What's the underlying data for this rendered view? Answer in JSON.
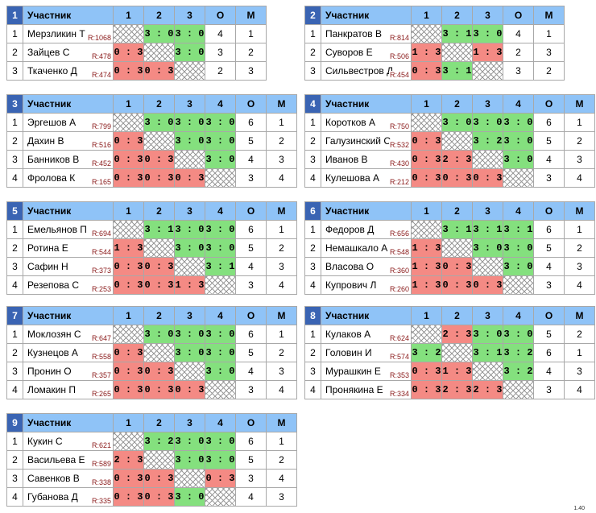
{
  "header": {
    "participant": "Участник",
    "points": "О",
    "place": "М"
  },
  "rating_prefix": "R:",
  "version": "1.40",
  "groups": [
    {
      "num": "1",
      "cols": [
        "1",
        "2",
        "3"
      ],
      "players": [
        {
          "idx": "1",
          "name": "Мерзликин Т",
          "rating": "1068",
          "cells": [
            "",
            "3 : 0",
            "3 : 0"
          ],
          "points": "4",
          "place": "1"
        },
        {
          "idx": "2",
          "name": "Зайцев С",
          "rating": "478",
          "cells": [
            "0 : 3",
            "",
            "3 : 0"
          ],
          "points": "3",
          "place": "2"
        },
        {
          "idx": "3",
          "name": "Ткаченко Д",
          "rating": "474",
          "cells": [
            "0 : 3",
            "0 : 3",
            ""
          ],
          "points": "2",
          "place": "3"
        }
      ]
    },
    {
      "num": "2",
      "cols": [
        "1",
        "2",
        "3"
      ],
      "players": [
        {
          "idx": "1",
          "name": "Панкратов В",
          "rating": "814",
          "cells": [
            "",
            "3 : 1",
            "3 : 0"
          ],
          "points": "4",
          "place": "1"
        },
        {
          "idx": "2",
          "name": "Суворов Е",
          "rating": "506",
          "cells": [
            "1 : 3",
            "",
            "1 : 3"
          ],
          "points": "2",
          "place": "3"
        },
        {
          "idx": "3",
          "name": "Сильвестров Д",
          "rating": "454",
          "cells": [
            "0 : 3",
            "3 : 1",
            ""
          ],
          "points": "3",
          "place": "2"
        }
      ]
    },
    {
      "num": "3",
      "cols": [
        "1",
        "2",
        "3",
        "4"
      ],
      "players": [
        {
          "idx": "1",
          "name": "Эргешов А",
          "rating": "799",
          "cells": [
            "",
            "3 : 0",
            "3 : 0",
            "3 : 0"
          ],
          "points": "6",
          "place": "1"
        },
        {
          "idx": "2",
          "name": "Дахин В",
          "rating": "516",
          "cells": [
            "0 : 3",
            "",
            "3 : 0",
            "3 : 0"
          ],
          "points": "5",
          "place": "2"
        },
        {
          "idx": "3",
          "name": "Банников В",
          "rating": "452",
          "cells": [
            "0 : 3",
            "0 : 3",
            "",
            "3 : 0"
          ],
          "points": "4",
          "place": "3"
        },
        {
          "idx": "4",
          "name": "Фролова К",
          "rating": "165",
          "cells": [
            "0 : 3",
            "0 : 3",
            "0 : 3",
            ""
          ],
          "points": "3",
          "place": "4"
        }
      ]
    },
    {
      "num": "4",
      "cols": [
        "1",
        "2",
        "3",
        "4"
      ],
      "players": [
        {
          "idx": "1",
          "name": "Коротков А",
          "rating": "750",
          "cells": [
            "",
            "3 : 0",
            "3 : 0",
            "3 : 0"
          ],
          "points": "6",
          "place": "1"
        },
        {
          "idx": "2",
          "name": "Галузинский С",
          "rating": "532",
          "cells": [
            "0 : 3",
            "",
            "3 : 2",
            "3 : 0"
          ],
          "points": "5",
          "place": "2"
        },
        {
          "idx": "3",
          "name": "Иванов В",
          "rating": "430",
          "cells": [
            "0 : 3",
            "2 : 3",
            "",
            "3 : 0"
          ],
          "points": "4",
          "place": "3"
        },
        {
          "idx": "4",
          "name": "Кулешова А",
          "rating": "212",
          "cells": [
            "0 : 3",
            "0 : 3",
            "0 : 3",
            ""
          ],
          "points": "3",
          "place": "4"
        }
      ]
    },
    {
      "num": "5",
      "cols": [
        "1",
        "2",
        "3",
        "4"
      ],
      "players": [
        {
          "idx": "1",
          "name": "Емельянов П",
          "rating": "694",
          "cells": [
            "",
            "3 : 1",
            "3 : 0",
            "3 : 0"
          ],
          "points": "6",
          "place": "1"
        },
        {
          "idx": "2",
          "name": "Ротина Е",
          "rating": "544",
          "cells": [
            "1 : 3",
            "",
            "3 : 0",
            "3 : 0"
          ],
          "points": "5",
          "place": "2"
        },
        {
          "idx": "3",
          "name": "Сафин Н",
          "rating": "373",
          "cells": [
            "0 : 3",
            "0 : 3",
            "",
            "3 : 1"
          ],
          "points": "4",
          "place": "3"
        },
        {
          "idx": "4",
          "name": "Резепова С",
          "rating": "253",
          "cells": [
            "0 : 3",
            "0 : 3",
            "1 : 3",
            ""
          ],
          "points": "3",
          "place": "4"
        }
      ]
    },
    {
      "num": "6",
      "cols": [
        "1",
        "2",
        "3",
        "4"
      ],
      "players": [
        {
          "idx": "1",
          "name": "Федоров Д",
          "rating": "656",
          "cells": [
            "",
            "3 : 1",
            "3 : 1",
            "3 : 1"
          ],
          "points": "6",
          "place": "1"
        },
        {
          "idx": "2",
          "name": "Немашкало А",
          "rating": "548",
          "cells": [
            "1 : 3",
            "",
            "3 : 0",
            "3 : 0"
          ],
          "points": "5",
          "place": "2"
        },
        {
          "idx": "3",
          "name": "Власова О",
          "rating": "360",
          "cells": [
            "1 : 3",
            "0 : 3",
            "",
            "3 : 0"
          ],
          "points": "4",
          "place": "3"
        },
        {
          "idx": "4",
          "name": "Купрович Л",
          "rating": "260",
          "cells": [
            "1 : 3",
            "0 : 3",
            "0 : 3",
            ""
          ],
          "points": "3",
          "place": "4"
        }
      ]
    },
    {
      "num": "7",
      "cols": [
        "1",
        "2",
        "3",
        "4"
      ],
      "players": [
        {
          "idx": "1",
          "name": "Моклозян С",
          "rating": "647",
          "cells": [
            "",
            "3 : 0",
            "3 : 0",
            "3 : 0"
          ],
          "points": "6",
          "place": "1"
        },
        {
          "idx": "2",
          "name": "Кузнецов А",
          "rating": "558",
          "cells": [
            "0 : 3",
            "",
            "3 : 0",
            "3 : 0"
          ],
          "points": "5",
          "place": "2"
        },
        {
          "idx": "3",
          "name": "Пронин О",
          "rating": "357",
          "cells": [
            "0 : 3",
            "0 : 3",
            "",
            "3 : 0"
          ],
          "points": "4",
          "place": "3"
        },
        {
          "idx": "4",
          "name": "Ломакин П",
          "rating": "265",
          "cells": [
            "0 : 3",
            "0 : 3",
            "0 : 3",
            ""
          ],
          "points": "3",
          "place": "4"
        }
      ]
    },
    {
      "num": "8",
      "cols": [
        "1",
        "2",
        "3",
        "4"
      ],
      "players": [
        {
          "idx": "1",
          "name": "Кулаков А",
          "rating": "624",
          "cells": [
            "",
            "2 : 3",
            "3 : 0",
            "3 : 0"
          ],
          "points": "5",
          "place": "2"
        },
        {
          "idx": "2",
          "name": "Головин И",
          "rating": "574",
          "cells": [
            "3 : 2",
            "",
            "3 : 1",
            "3 : 2"
          ],
          "points": "6",
          "place": "1"
        },
        {
          "idx": "3",
          "name": "Мурашкин Е",
          "rating": "353",
          "cells": [
            "0 : 3",
            "1 : 3",
            "",
            "3 : 2"
          ],
          "points": "4",
          "place": "3"
        },
        {
          "idx": "4",
          "name": "Пронякина Е",
          "rating": "334",
          "cells": [
            "0 : 3",
            "2 : 3",
            "2 : 3",
            ""
          ],
          "points": "3",
          "place": "4"
        }
      ]
    },
    {
      "num": "9",
      "cols": [
        "1",
        "2",
        "3",
        "4"
      ],
      "players": [
        {
          "idx": "1",
          "name": "Кукин С",
          "rating": "621",
          "cells": [
            "",
            "3 : 2",
            "3 : 0",
            "3 : 0"
          ],
          "points": "6",
          "place": "1"
        },
        {
          "idx": "2",
          "name": "Васильева Е",
          "rating": "589",
          "cells": [
            "2 : 3",
            "",
            "3 : 0",
            "3 : 0"
          ],
          "points": "5",
          "place": "2"
        },
        {
          "idx": "3",
          "name": "Савенков В",
          "rating": "338",
          "cells": [
            "0 : 3",
            "0 : 3",
            "",
            "0 : 3"
          ],
          "points": "3",
          "place": "4"
        },
        {
          "idx": "4",
          "name": "Губанова Д",
          "rating": "335",
          "cells": [
            "0 : 3",
            "0 : 3",
            "3 : 0",
            ""
          ],
          "points": "4",
          "place": "3"
        }
      ]
    }
  ]
}
